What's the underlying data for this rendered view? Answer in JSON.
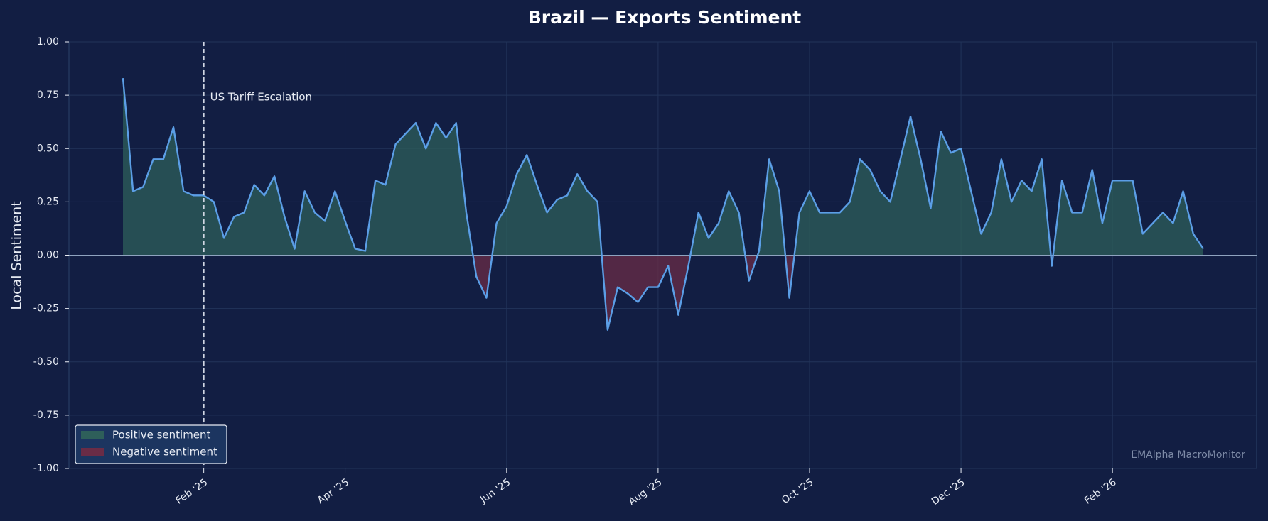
{
  "chart_data": {
    "type": "line",
    "title": "Brazil — Exports Sentiment",
    "ylabel": "Local Sentiment",
    "watermark": "EMAlpha MacroMonitor",
    "categories": [
      null,
      null,
      null,
      null,
      null,
      null,
      null,
      null,
      "Feb '25",
      null,
      null,
      null,
      null,
      null,
      null,
      null,
      null,
      null,
      null,
      null,
      null,
      null,
      "Apr '25",
      null,
      null,
      null,
      null,
      null,
      null,
      null,
      null,
      null,
      null,
      null,
      null,
      null,
      null,
      null,
      "Jun '25",
      null,
      null,
      null,
      null,
      null,
      null,
      null,
      null,
      null,
      null,
      null,
      null,
      null,
      null,
      "Aug '25",
      null,
      null,
      null,
      null,
      null,
      null,
      null,
      null,
      null,
      null,
      null,
      null,
      null,
      null,
      "Oct '25",
      null,
      null,
      null,
      null,
      null,
      null,
      null,
      null,
      null,
      null,
      null,
      null,
      null,
      null,
      "Dec '25",
      null,
      null,
      null,
      null,
      null,
      null,
      null,
      null,
      null,
      null,
      null,
      null,
      null,
      null,
      "Feb '26",
      null,
      null,
      null,
      null,
      null,
      null,
      null,
      null,
      null
    ],
    "series": [
      {
        "name": "Local Sentiment",
        "color": "#5b9ee6",
        "values": [
          0.83,
          0.3,
          0.32,
          0.45,
          0.45,
          0.6,
          0.3,
          0.28,
          0.28,
          0.25,
          0.08,
          0.18,
          0.2,
          0.33,
          0.28,
          0.37,
          0.18,
          0.03,
          0.3,
          0.2,
          0.16,
          0.3,
          0.16,
          0.03,
          0.02,
          0.35,
          0.33,
          0.52,
          0.57,
          0.62,
          0.5,
          0.62,
          0.55,
          0.62,
          0.2,
          -0.1,
          -0.2,
          0.15,
          0.23,
          0.38,
          0.47,
          0.33,
          0.2,
          0.26,
          0.28,
          0.38,
          0.3,
          0.25,
          -0.35,
          -0.15,
          -0.18,
          -0.22,
          -0.15,
          -0.15,
          -0.05,
          -0.28,
          -0.05,
          0.2,
          0.08,
          0.15,
          0.3,
          0.2,
          -0.12,
          0.02,
          0.45,
          0.3,
          -0.2,
          0.2,
          0.3,
          0.2,
          0.2,
          0.2,
          0.25,
          0.45,
          0.4,
          0.3,
          0.25,
          0.45,
          0.65,
          0.45,
          0.22,
          0.58,
          0.48,
          0.5,
          0.3,
          0.1,
          0.2,
          0.45,
          0.25,
          0.35,
          0.3,
          0.45,
          -0.05,
          0.35,
          0.2,
          0.2,
          0.4,
          0.15,
          0.35,
          0.35,
          0.35,
          0.1,
          0.15,
          0.2,
          0.15,
          0.3,
          0.1,
          0.03
        ]
      }
    ],
    "ylim": [
      -1,
      1
    ],
    "yticks": [
      {
        "value": -1,
        "label": "-1.00"
      },
      {
        "value": -0.75,
        "label": "-0.75"
      },
      {
        "value": -0.5,
        "label": "-0.50"
      },
      {
        "value": -0.25,
        "label": "-0.25"
      },
      {
        "value": 0,
        "label": "0.00"
      },
      {
        "value": 0.25,
        "label": "0.25"
      },
      {
        "value": 0.5,
        "label": "0.50"
      },
      {
        "value": 0.75,
        "label": "0.75"
      },
      {
        "value": 1,
        "label": "1.00"
      }
    ],
    "grid": true,
    "annotations": [
      {
        "label": "US Tariff Escalation",
        "at": "Feb '25"
      }
    ],
    "legend": {
      "loc": "lower left",
      "entries": [
        {
          "label": "Positive sentiment",
          "color": "#2e5f5a"
        },
        {
          "label": "Negative sentiment",
          "color": "#6a2c46"
        }
      ]
    }
  }
}
